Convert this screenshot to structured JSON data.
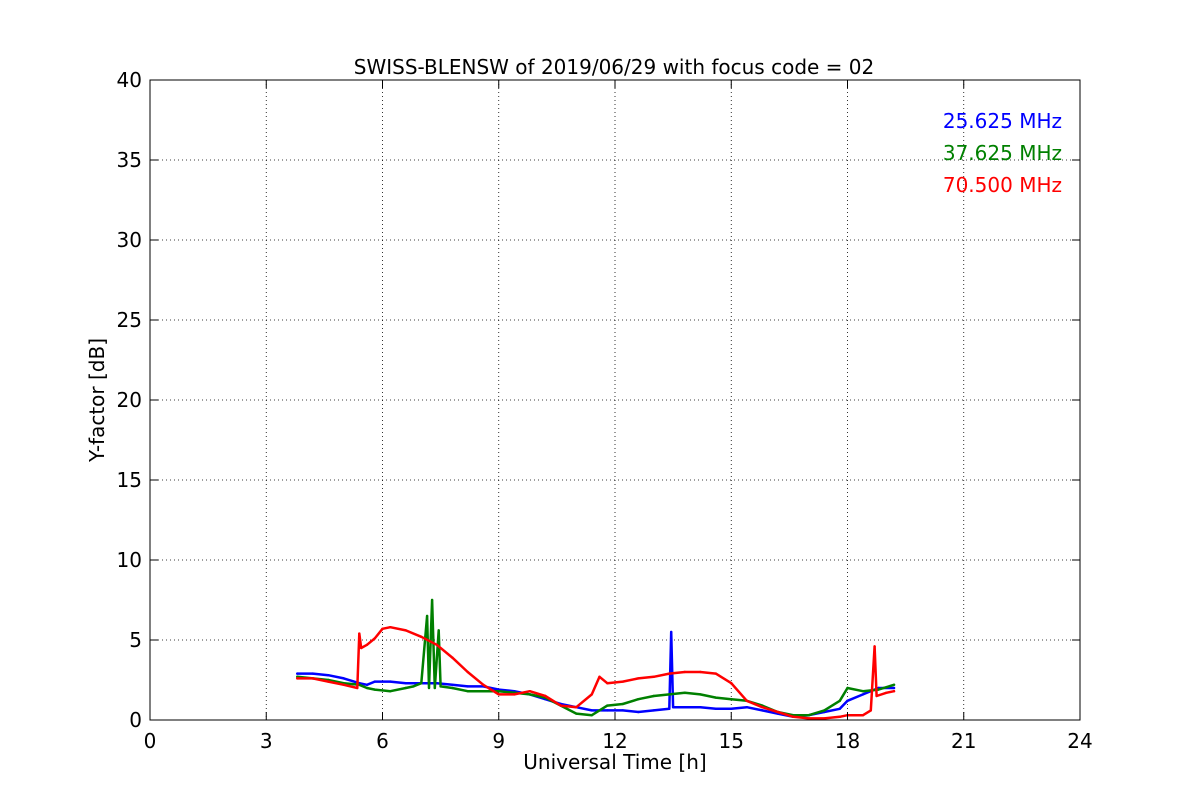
{
  "chart_data": {
    "type": "line",
    "title": "SWISS-BLENSW of 2019/06/29 with focus code = 02",
    "xlabel": "Universal Time [h]",
    "ylabel": "Y-factor [dB]",
    "xlim": [
      0,
      24
    ],
    "ylim": [
      0,
      40
    ],
    "xticks": [
      "0",
      "3",
      "6",
      "9",
      "12",
      "15",
      "18",
      "21",
      "24"
    ],
    "yticks": [
      "0",
      "5",
      "10",
      "15",
      "20",
      "25",
      "30",
      "35",
      "40"
    ],
    "grid": true,
    "legend_position": "top-right",
    "series": [
      {
        "name": "25.625 MHz",
        "color": "#0000ff",
        "points": [
          [
            3.8,
            2.9
          ],
          [
            4.2,
            2.9
          ],
          [
            4.6,
            2.8
          ],
          [
            5.0,
            2.6
          ],
          [
            5.4,
            2.3
          ],
          [
            5.6,
            2.2
          ],
          [
            5.8,
            2.4
          ],
          [
            6.2,
            2.4
          ],
          [
            6.6,
            2.3
          ],
          [
            7.0,
            2.3
          ],
          [
            7.4,
            2.3
          ],
          [
            7.8,
            2.2
          ],
          [
            8.2,
            2.1
          ],
          [
            8.6,
            2.1
          ],
          [
            9.0,
            1.9
          ],
          [
            9.4,
            1.8
          ],
          [
            9.8,
            1.6
          ],
          [
            10.2,
            1.3
          ],
          [
            10.6,
            1.0
          ],
          [
            11.0,
            0.8
          ],
          [
            11.4,
            0.6
          ],
          [
            11.8,
            0.6
          ],
          [
            12.2,
            0.6
          ],
          [
            12.6,
            0.5
          ],
          [
            13.0,
            0.6
          ],
          [
            13.4,
            0.7
          ],
          [
            13.45,
            5.5
          ],
          [
            13.5,
            0.8
          ],
          [
            13.8,
            0.8
          ],
          [
            14.2,
            0.8
          ],
          [
            14.6,
            0.7
          ],
          [
            15.0,
            0.7
          ],
          [
            15.4,
            0.8
          ],
          [
            15.8,
            0.6
          ],
          [
            16.2,
            0.4
          ],
          [
            16.6,
            0.2
          ],
          [
            17.0,
            0.3
          ],
          [
            17.4,
            0.5
          ],
          [
            17.8,
            0.7
          ],
          [
            18.0,
            1.2
          ],
          [
            18.4,
            1.6
          ],
          [
            18.8,
            2.0
          ],
          [
            19.2,
            2.0
          ]
        ]
      },
      {
        "name": "37.625 MHz",
        "color": "#008000",
        "points": [
          [
            3.8,
            2.7
          ],
          [
            4.2,
            2.6
          ],
          [
            4.6,
            2.5
          ],
          [
            5.0,
            2.3
          ],
          [
            5.4,
            2.2
          ],
          [
            5.6,
            2.0
          ],
          [
            5.8,
            1.9
          ],
          [
            6.2,
            1.8
          ],
          [
            6.6,
            2.0
          ],
          [
            6.8,
            2.1
          ],
          [
            7.0,
            2.3
          ],
          [
            7.15,
            6.5
          ],
          [
            7.2,
            2.0
          ],
          [
            7.28,
            7.5
          ],
          [
            7.35,
            2.0
          ],
          [
            7.45,
            5.6
          ],
          [
            7.5,
            2.1
          ],
          [
            7.8,
            2.0
          ],
          [
            8.2,
            1.8
          ],
          [
            8.6,
            1.8
          ],
          [
            9.0,
            1.8
          ],
          [
            9.4,
            1.7
          ],
          [
            9.8,
            1.6
          ],
          [
            10.2,
            1.4
          ],
          [
            10.6,
            0.9
          ],
          [
            11.0,
            0.4
          ],
          [
            11.4,
            0.3
          ],
          [
            11.8,
            0.9
          ],
          [
            12.2,
            1.0
          ],
          [
            12.6,
            1.3
          ],
          [
            13.0,
            1.5
          ],
          [
            13.4,
            1.6
          ],
          [
            13.8,
            1.7
          ],
          [
            14.2,
            1.6
          ],
          [
            14.6,
            1.4
          ],
          [
            15.0,
            1.3
          ],
          [
            15.4,
            1.2
          ],
          [
            15.8,
            0.9
          ],
          [
            16.2,
            0.5
          ],
          [
            16.6,
            0.3
          ],
          [
            17.0,
            0.3
          ],
          [
            17.4,
            0.6
          ],
          [
            17.8,
            1.2
          ],
          [
            18.0,
            2.0
          ],
          [
            18.4,
            1.8
          ],
          [
            18.8,
            1.9
          ],
          [
            19.2,
            2.2
          ]
        ]
      },
      {
        "name": "70.500 MHz",
        "color": "#ff0000",
        "points": [
          [
            3.8,
            2.6
          ],
          [
            4.2,
            2.6
          ],
          [
            4.6,
            2.4
          ],
          [
            5.0,
            2.2
          ],
          [
            5.35,
            2.0
          ],
          [
            5.4,
            5.4
          ],
          [
            5.45,
            4.5
          ],
          [
            5.6,
            4.7
          ],
          [
            5.8,
            5.1
          ],
          [
            6.0,
            5.7
          ],
          [
            6.2,
            5.8
          ],
          [
            6.6,
            5.6
          ],
          [
            7.0,
            5.2
          ],
          [
            7.4,
            4.7
          ],
          [
            7.8,
            3.9
          ],
          [
            8.2,
            3.0
          ],
          [
            8.6,
            2.2
          ],
          [
            9.0,
            1.6
          ],
          [
            9.4,
            1.6
          ],
          [
            9.8,
            1.8
          ],
          [
            10.2,
            1.5
          ],
          [
            10.6,
            0.9
          ],
          [
            11.0,
            0.8
          ],
          [
            11.4,
            1.6
          ],
          [
            11.6,
            2.7
          ],
          [
            11.8,
            2.3
          ],
          [
            12.2,
            2.4
          ],
          [
            12.6,
            2.6
          ],
          [
            13.0,
            2.7
          ],
          [
            13.4,
            2.9
          ],
          [
            13.8,
            3.0
          ],
          [
            14.2,
            3.0
          ],
          [
            14.6,
            2.9
          ],
          [
            15.0,
            2.3
          ],
          [
            15.4,
            1.2
          ],
          [
            15.8,
            0.8
          ],
          [
            16.2,
            0.5
          ],
          [
            16.6,
            0.2
          ],
          [
            17.0,
            0.1
          ],
          [
            17.4,
            0.1
          ],
          [
            17.8,
            0.2
          ],
          [
            18.0,
            0.3
          ],
          [
            18.4,
            0.3
          ],
          [
            18.6,
            0.6
          ],
          [
            18.7,
            4.6
          ],
          [
            18.75,
            1.5
          ],
          [
            19.0,
            1.7
          ],
          [
            19.2,
            1.8
          ]
        ]
      }
    ]
  }
}
